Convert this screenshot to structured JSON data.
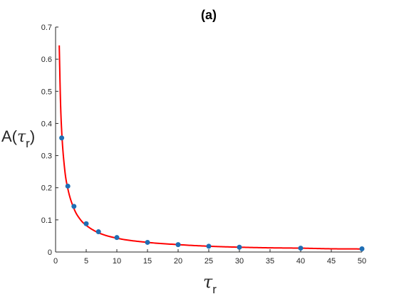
{
  "chart_data": {
    "type": "scatter",
    "title": "(a)",
    "xlabel": {
      "symbol": "τ",
      "subscript": "r"
    },
    "ylabel": {
      "prefix": "A(",
      "symbol": "τ",
      "subscript": "r",
      "suffix": ")"
    },
    "xlim": [
      0,
      50
    ],
    "ylim": [
      0,
      0.7
    ],
    "xticks": [
      0,
      5,
      10,
      15,
      20,
      25,
      30,
      35,
      40,
      45,
      50
    ],
    "yticks": [
      0,
      0.1,
      0.2,
      0.3,
      0.4,
      0.5,
      0.6,
      0.7
    ],
    "grid": false,
    "series": [
      {
        "kind": "points",
        "color": "#1f6eb4",
        "x": [
          1,
          2,
          3,
          5,
          7,
          10,
          15,
          20,
          25,
          30,
          40,
          50
        ],
        "y": [
          0.355,
          0.205,
          0.142,
          0.088,
          0.063,
          0.045,
          0.03,
          0.023,
          0.018,
          0.015,
          0.012,
          0.01
        ]
      },
      {
        "kind": "fit-curve",
        "color": "#ff0000",
        "x": [
          0.6,
          0.8,
          1,
          1.5,
          2,
          3,
          4,
          5,
          7,
          10,
          15,
          20,
          25,
          30,
          35,
          40,
          45,
          50
        ],
        "y": [
          0.643,
          0.47,
          0.375,
          0.255,
          0.197,
          0.135,
          0.102,
          0.083,
          0.06,
          0.043,
          0.03,
          0.023,
          0.018,
          0.015,
          0.013,
          0.012,
          0.01,
          0.0095
        ]
      }
    ]
  }
}
